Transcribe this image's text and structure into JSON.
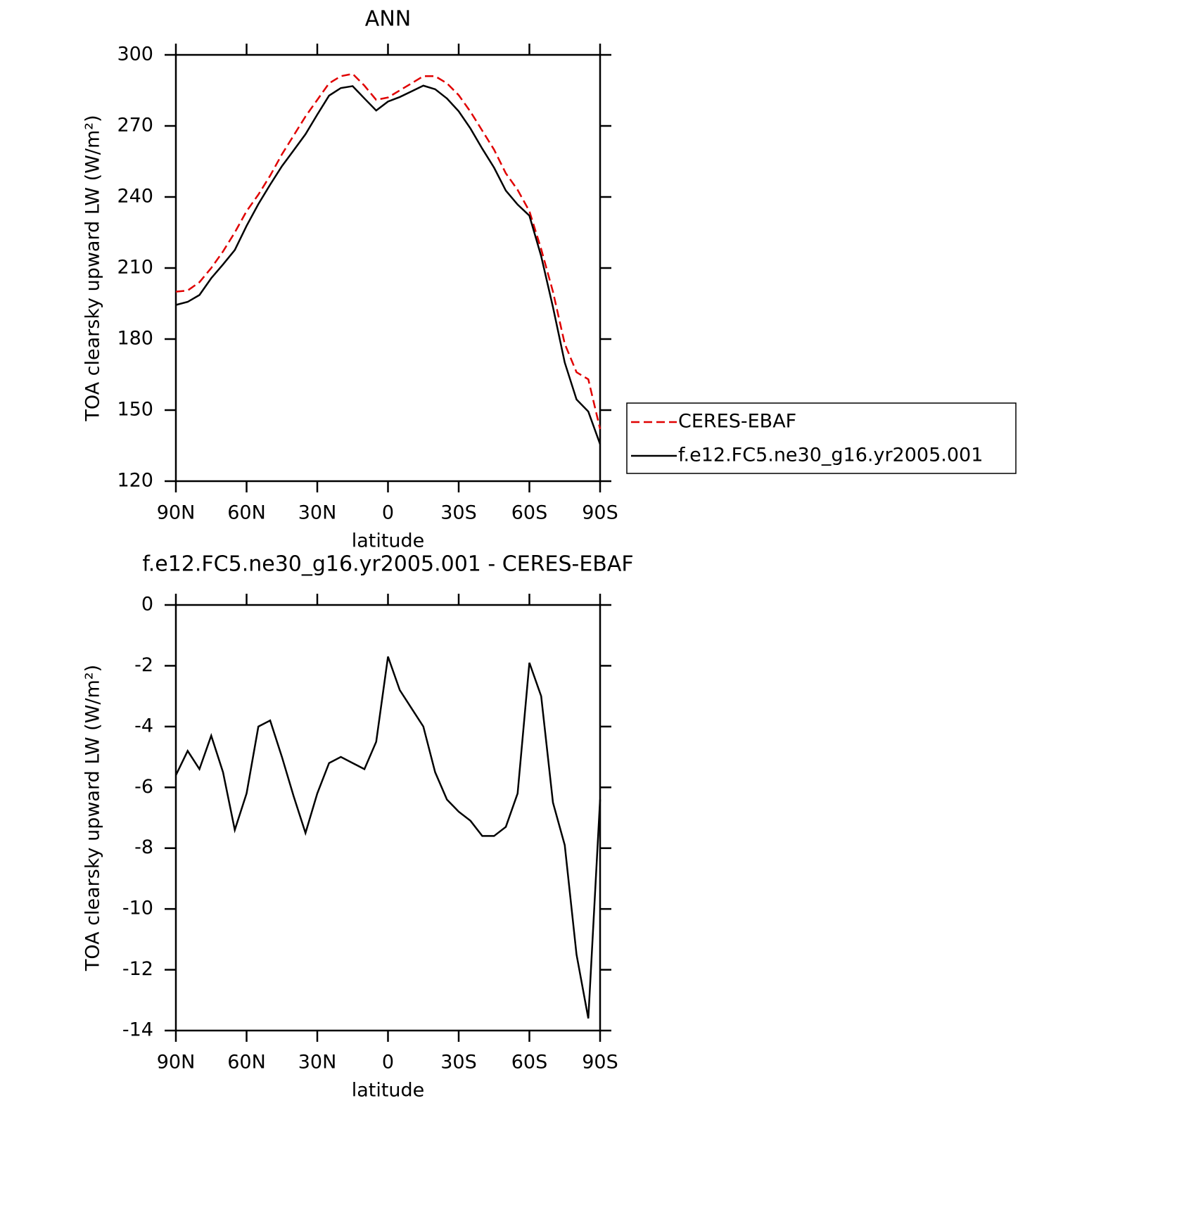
{
  "chart_data": [
    {
      "type": "line",
      "title": "ANN",
      "xlabel": "latitude",
      "ylabel": "TOA clearsky upward LW (W/m²)",
      "x": [
        90,
        85,
        80,
        75,
        70,
        65,
        60,
        55,
        50,
        45,
        40,
        35,
        30,
        25,
        20,
        15,
        10,
        5,
        0,
        -5,
        -10,
        -15,
        -20,
        -25,
        -30,
        -35,
        -40,
        -45,
        -50,
        -55,
        -60,
        -65,
        -70,
        -75,
        -80,
        -85,
        -90
      ],
      "xlim": [
        90,
        -90
      ],
      "xticks": [
        {
          "value": 90,
          "label": "90N"
        },
        {
          "value": 60,
          "label": "60N"
        },
        {
          "value": 30,
          "label": "30N"
        },
        0,
        {
          "value": -30,
          "label": "30S"
        },
        {
          "value": -60,
          "label": "60S"
        },
        {
          "value": -90,
          "label": "90S"
        }
      ],
      "ylim": [
        120,
        300
      ],
      "yticks": [
        120,
        150,
        180,
        210,
        240,
        270,
        300
      ],
      "series": [
        {
          "name": "CERES-EBAF",
          "color": "#e00000",
          "dashed": true,
          "values": [
            200,
            200.5,
            204,
            210,
            217,
            225,
            234,
            241,
            249,
            258,
            266,
            274,
            281,
            288,
            291,
            292,
            287,
            281,
            282,
            285,
            288,
            291,
            291,
            288,
            283,
            276,
            268,
            260,
            250,
            243,
            234,
            218,
            200,
            178,
            166,
            163,
            142
          ]
        },
        {
          "name": "f.e12.FC5.ne30_g16.yr2005.001",
          "color": "#000000",
          "dashed": false,
          "values": [
            194.4,
            195.7,
            198.6,
            205.7,
            211.5,
            217.6,
            227.8,
            237,
            245.2,
            253,
            259.7,
            266.5,
            274.8,
            282.8,
            286,
            286.8,
            281.6,
            276.5,
            280.3,
            282.2,
            284.6,
            287,
            285.5,
            281.6,
            276.2,
            268.9,
            260.4,
            252.4,
            242.7,
            236.8,
            232.1,
            215,
            193.5,
            170.1,
            154.5,
            149.4,
            135.6
          ]
        }
      ]
    },
    {
      "type": "line",
      "title": "f.e12.FC5.ne30_g16.yr2005.001 - CERES-EBAF",
      "xlabel": "latitude",
      "ylabel": "TOA clearsky upward LW (W/m²)",
      "x": [
        90,
        85,
        80,
        75,
        70,
        65,
        60,
        55,
        50,
        45,
        40,
        35,
        30,
        25,
        20,
        15,
        10,
        5,
        0,
        -5,
        -10,
        -15,
        -20,
        -25,
        -30,
        -35,
        -40,
        -45,
        -50,
        -55,
        -60,
        -65,
        -70,
        -75,
        -80,
        -85,
        -90
      ],
      "xlim": [
        90,
        -90
      ],
      "xticks": [
        {
          "value": 90,
          "label": "90N"
        },
        {
          "value": 60,
          "label": "60N"
        },
        {
          "value": 30,
          "label": "30N"
        },
        0,
        {
          "value": -30,
          "label": "30S"
        },
        {
          "value": -60,
          "label": "60S"
        },
        {
          "value": -90,
          "label": "90S"
        }
      ],
      "ylim": [
        -14,
        0
      ],
      "yticks": [
        -14,
        -12,
        -10,
        -8,
        -6,
        -4,
        -2,
        0
      ],
      "series": [
        {
          "color": "#000000",
          "dashed": false,
          "values": [
            -5.6,
            -4.8,
            -5.4,
            -4.3,
            -5.5,
            -7.4,
            -6.2,
            -4.0,
            -3.8,
            -5.0,
            -6.3,
            -7.5,
            -6.2,
            -5.2,
            -5.0,
            -5.2,
            -5.4,
            -4.5,
            -1.7,
            -2.8,
            -3.4,
            -4.0,
            -5.5,
            -6.4,
            -6.8,
            -7.1,
            -7.6,
            -7.6,
            -7.3,
            -6.2,
            -1.9,
            -3.0,
            -6.5,
            -7.9,
            -11.5,
            -13.6,
            -6.4
          ]
        }
      ]
    }
  ]
}
